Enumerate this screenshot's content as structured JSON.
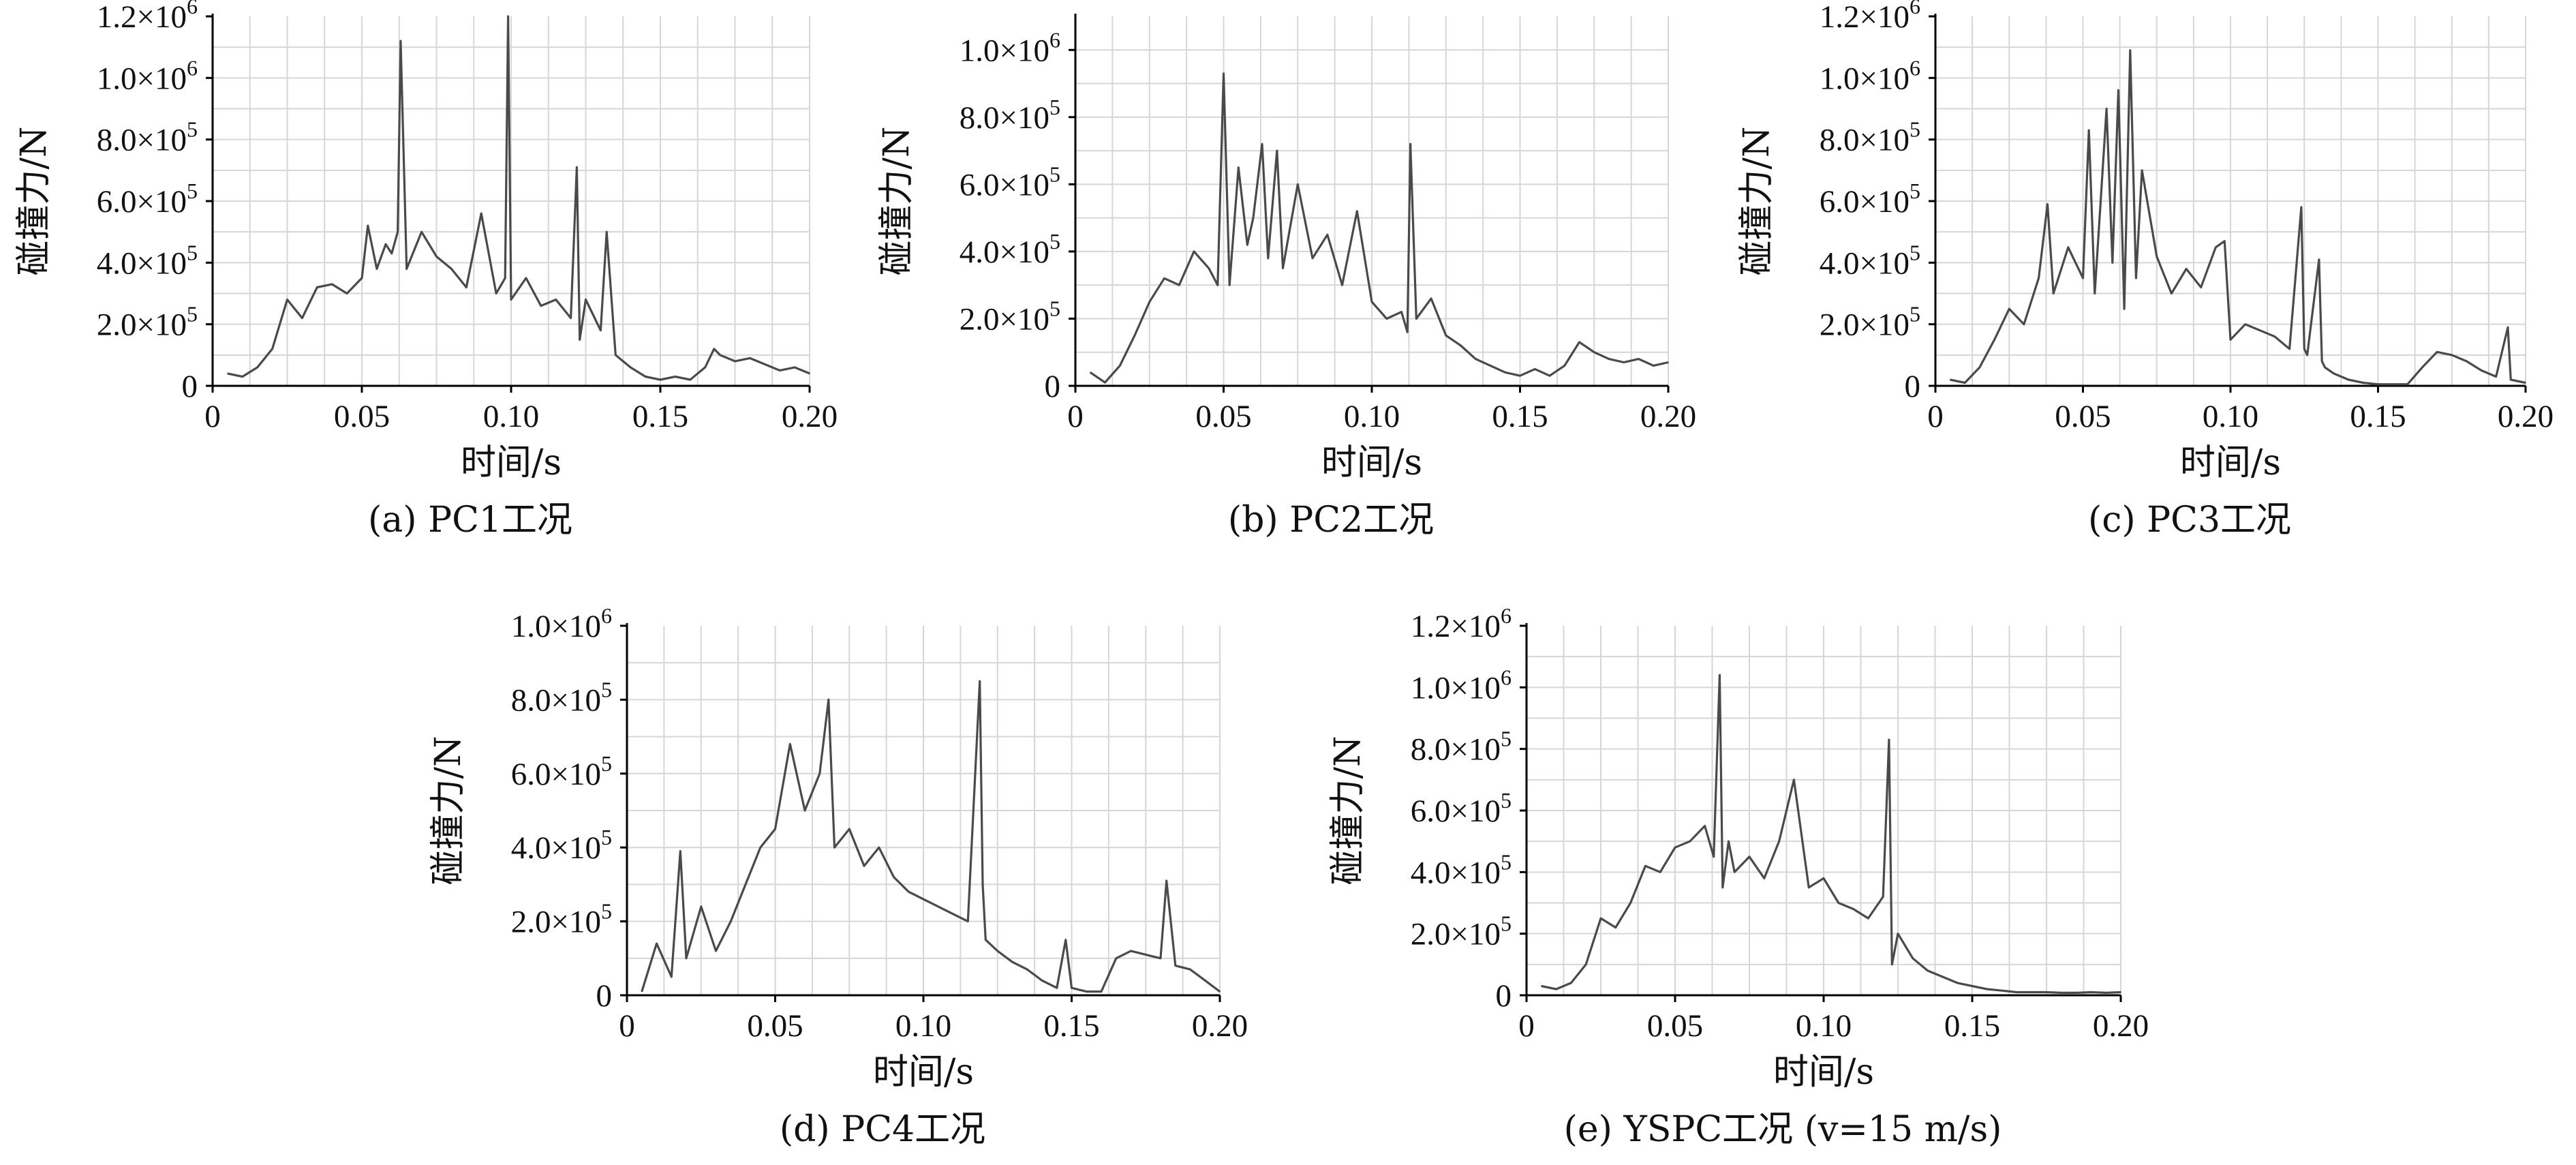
{
  "chart_data": [
    {
      "type": "line",
      "caption": "(a) PC1工况",
      "xlabel": "时间/s",
      "ylabel": "碰撞力/N",
      "xlim": [
        0,
        0.2
      ],
      "ylim": [
        0,
        1200000
      ],
      "x_ticks": [
        "0",
        "0.05",
        "0.10",
        "0.15",
        "0.20"
      ],
      "y_ticks": [
        {
          "m": "0",
          "e": ""
        },
        {
          "m": "2.0×10",
          "e": "5"
        },
        {
          "m": "4.0×10",
          "e": "5"
        },
        {
          "m": "6.0×10",
          "e": "5"
        },
        {
          "m": "8.0×10",
          "e": "5"
        },
        {
          "m": "1.0×10",
          "e": "6"
        },
        {
          "m": "1.2×10",
          "e": "6"
        }
      ],
      "grid": true,
      "series": [
        {
          "x": [
            0.005,
            0.01,
            0.015,
            0.02,
            0.025,
            0.03,
            0.035,
            0.04,
            0.045,
            0.05,
            0.052,
            0.055,
            0.058,
            0.06,
            0.062,
            0.063,
            0.065,
            0.07,
            0.075,
            0.08,
            0.085,
            0.09,
            0.095,
            0.098,
            0.099,
            0.1,
            0.105,
            0.11,
            0.115,
            0.12,
            0.122,
            0.123,
            0.125,
            0.13,
            0.132,
            0.135,
            0.14,
            0.145,
            0.15,
            0.155,
            0.16,
            0.165,
            0.168,
            0.17,
            0.175,
            0.18,
            0.185,
            0.19,
            0.195,
            0.2
          ],
          "y": [
            40000,
            30000,
            60000,
            120000,
            280000,
            220000,
            320000,
            330000,
            300000,
            350000,
            520000,
            380000,
            460000,
            430000,
            500000,
            1120000,
            380000,
            500000,
            420000,
            380000,
            320000,
            560000,
            300000,
            350000,
            1200000,
            280000,
            350000,
            260000,
            280000,
            220000,
            710000,
            150000,
            280000,
            180000,
            500000,
            100000,
            60000,
            30000,
            20000,
            30000,
            20000,
            60000,
            120000,
            100000,
            80000,
            90000,
            70000,
            50000,
            60000,
            40000
          ]
        }
      ]
    },
    {
      "type": "line",
      "caption": "(b) PC2工况",
      "xlabel": "时间/s",
      "ylabel": "碰撞力/N",
      "xlim": [
        0,
        0.2
      ],
      "ylim": [
        0,
        1100000
      ],
      "x_ticks": [
        "0",
        "0.05",
        "0.10",
        "0.15",
        "0.20"
      ],
      "y_ticks": [
        {
          "m": "0",
          "e": ""
        },
        {
          "m": "2.0×10",
          "e": "5"
        },
        {
          "m": "4.0×10",
          "e": "5"
        },
        {
          "m": "6.0×10",
          "e": "5"
        },
        {
          "m": "8.0×10",
          "e": "5"
        },
        {
          "m": "1.0×10",
          "e": "6"
        }
      ],
      "grid": true,
      "series": [
        {
          "x": [
            0.005,
            0.01,
            0.015,
            0.02,
            0.025,
            0.03,
            0.035,
            0.04,
            0.045,
            0.048,
            0.05,
            0.052,
            0.055,
            0.058,
            0.06,
            0.063,
            0.065,
            0.068,
            0.07,
            0.075,
            0.08,
            0.085,
            0.09,
            0.095,
            0.1,
            0.105,
            0.11,
            0.112,
            0.113,
            0.115,
            0.12,
            0.125,
            0.13,
            0.135,
            0.14,
            0.145,
            0.15,
            0.155,
            0.16,
            0.165,
            0.17,
            0.175,
            0.18,
            0.185,
            0.19,
            0.195,
            0.2
          ],
          "y": [
            40000,
            10000,
            60000,
            150000,
            250000,
            320000,
            300000,
            400000,
            350000,
            300000,
            930000,
            300000,
            650000,
            420000,
            500000,
            720000,
            380000,
            700000,
            350000,
            600000,
            380000,
            450000,
            300000,
            520000,
            250000,
            200000,
            220000,
            160000,
            720000,
            200000,
            260000,
            150000,
            120000,
            80000,
            60000,
            40000,
            30000,
            50000,
            30000,
            60000,
            130000,
            100000,
            80000,
            70000,
            80000,
            60000,
            70000
          ]
        }
      ]
    },
    {
      "type": "line",
      "caption": "(c) PC3工况",
      "xlabel": "时间/s",
      "ylabel": "碰撞力/N",
      "xlim": [
        0,
        0.2
      ],
      "ylim": [
        0,
        1200000
      ],
      "x_ticks": [
        "0",
        "0.05",
        "0.10",
        "0.15",
        "0.20"
      ],
      "y_ticks": [
        {
          "m": "0",
          "e": ""
        },
        {
          "m": "2.0×10",
          "e": "5"
        },
        {
          "m": "4.0×10",
          "e": "5"
        },
        {
          "m": "6.0×10",
          "e": "5"
        },
        {
          "m": "8.0×10",
          "e": "5"
        },
        {
          "m": "1.0×10",
          "e": "6"
        },
        {
          "m": "1.2×10",
          "e": "6"
        }
      ],
      "grid": true,
      "series": [
        {
          "x": [
            0.005,
            0.01,
            0.015,
            0.02,
            0.025,
            0.03,
            0.035,
            0.038,
            0.04,
            0.045,
            0.05,
            0.052,
            0.054,
            0.056,
            0.058,
            0.06,
            0.062,
            0.064,
            0.066,
            0.068,
            0.07,
            0.075,
            0.08,
            0.085,
            0.09,
            0.095,
            0.098,
            0.1,
            0.105,
            0.11,
            0.115,
            0.12,
            0.124,
            0.125,
            0.126,
            0.13,
            0.131,
            0.132,
            0.135,
            0.14,
            0.145,
            0.15,
            0.155,
            0.16,
            0.165,
            0.17,
            0.175,
            0.18,
            0.185,
            0.19,
            0.194,
            0.195,
            0.2
          ],
          "y": [
            20000,
            10000,
            60000,
            150000,
            250000,
            200000,
            350000,
            590000,
            300000,
            450000,
            350000,
            830000,
            300000,
            600000,
            900000,
            400000,
            960000,
            250000,
            1090000,
            350000,
            700000,
            420000,
            300000,
            380000,
            320000,
            450000,
            470000,
            150000,
            200000,
            180000,
            160000,
            120000,
            580000,
            120000,
            100000,
            410000,
            80000,
            60000,
            40000,
            20000,
            10000,
            5000,
            5000,
            5000,
            60000,
            110000,
            100000,
            80000,
            50000,
            30000,
            190000,
            20000,
            10000
          ]
        }
      ]
    },
    {
      "type": "line",
      "caption": "(d) PC4工况",
      "xlabel": "时间/s",
      "ylabel": "碰撞力/N",
      "xlim": [
        0,
        0.2
      ],
      "ylim": [
        0,
        1000000
      ],
      "x_ticks": [
        "0",
        "0.05",
        "0.10",
        "0.15",
        "0.20"
      ],
      "y_ticks": [
        {
          "m": "0",
          "e": ""
        },
        {
          "m": "2.0×10",
          "e": "5"
        },
        {
          "m": "4.0×10",
          "e": "5"
        },
        {
          "m": "6.0×10",
          "e": "5"
        },
        {
          "m": "8.0×10",
          "e": "5"
        },
        {
          "m": "1.0×10",
          "e": "6"
        }
      ],
      "grid": true,
      "series": [
        {
          "x": [
            0.005,
            0.01,
            0.015,
            0.018,
            0.02,
            0.025,
            0.03,
            0.035,
            0.04,
            0.045,
            0.05,
            0.055,
            0.06,
            0.065,
            0.068,
            0.07,
            0.075,
            0.08,
            0.085,
            0.09,
            0.095,
            0.1,
            0.105,
            0.11,
            0.115,
            0.119,
            0.12,
            0.121,
            0.125,
            0.13,
            0.135,
            0.14,
            0.145,
            0.148,
            0.15,
            0.155,
            0.16,
            0.165,
            0.17,
            0.175,
            0.18,
            0.182,
            0.185,
            0.19,
            0.195,
            0.2
          ],
          "y": [
            10000,
            140000,
            50000,
            390000,
            100000,
            240000,
            120000,
            200000,
            300000,
            400000,
            450000,
            680000,
            500000,
            600000,
            800000,
            400000,
            450000,
            350000,
            400000,
            320000,
            280000,
            260000,
            240000,
            220000,
            200000,
            850000,
            300000,
            150000,
            120000,
            90000,
            70000,
            40000,
            20000,
            150000,
            20000,
            10000,
            10000,
            100000,
            120000,
            110000,
            100000,
            310000,
            80000,
            70000,
            40000,
            10000
          ]
        }
      ]
    },
    {
      "type": "line",
      "caption": "(e) YSPC工况 (v=15 m/s)",
      "xlabel": "时间/s",
      "ylabel": "碰撞力/N",
      "xlim": [
        0,
        0.2
      ],
      "ylim": [
        0,
        1200000
      ],
      "x_ticks": [
        "0",
        "0.05",
        "0.10",
        "0.15",
        "0.20"
      ],
      "y_ticks": [
        {
          "m": "0",
          "e": ""
        },
        {
          "m": "2.0×10",
          "e": "5"
        },
        {
          "m": "4.0×10",
          "e": "5"
        },
        {
          "m": "6.0×10",
          "e": "5"
        },
        {
          "m": "8.0×10",
          "e": "5"
        },
        {
          "m": "1.0×10",
          "e": "6"
        },
        {
          "m": "1.2×10",
          "e": "6"
        }
      ],
      "grid": true,
      "series": [
        {
          "x": [
            0.005,
            0.01,
            0.015,
            0.02,
            0.025,
            0.03,
            0.035,
            0.04,
            0.045,
            0.05,
            0.055,
            0.06,
            0.063,
            0.065,
            0.066,
            0.068,
            0.07,
            0.075,
            0.08,
            0.085,
            0.09,
            0.095,
            0.1,
            0.105,
            0.11,
            0.115,
            0.12,
            0.122,
            0.123,
            0.125,
            0.13,
            0.135,
            0.14,
            0.145,
            0.15,
            0.155,
            0.16,
            0.165,
            0.17,
            0.175,
            0.18,
            0.185,
            0.19,
            0.195,
            0.2
          ],
          "y": [
            30000,
            20000,
            40000,
            100000,
            250000,
            220000,
            300000,
            420000,
            400000,
            480000,
            500000,
            550000,
            450000,
            1040000,
            350000,
            500000,
            400000,
            450000,
            380000,
            500000,
            700000,
            350000,
            380000,
            300000,
            280000,
            250000,
            320000,
            830000,
            100000,
            200000,
            120000,
            80000,
            60000,
            40000,
            30000,
            20000,
            15000,
            10000,
            10000,
            10000,
            8000,
            8000,
            10000,
            8000,
            10000
          ]
        }
      ]
    }
  ]
}
